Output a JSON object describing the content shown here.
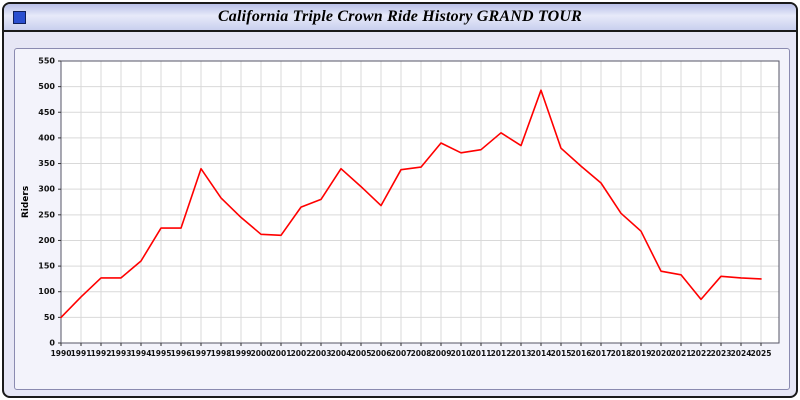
{
  "header": {
    "title": "California Triple Crown Ride History GRAND TOUR"
  },
  "colors": {
    "line": "#ff0000",
    "window_background": "#e6e6f5",
    "panel_background": "#f3f3fb",
    "plot_background": "#ffffff",
    "gridline": "#d9d9d9",
    "plot_border": "#555566"
  },
  "chart_data": {
    "type": "line",
    "title": "California Triple Crown Ride History GRAND TOUR",
    "xlabel": "",
    "ylabel": "Riders",
    "ylim": [
      0,
      550
    ],
    "y_tick_step": 50,
    "grid": true,
    "legend": "none",
    "line_color": "#ff0000",
    "categories": [
      "1990",
      "1991",
      "1992",
      "1993",
      "1994",
      "1995",
      "1996",
      "1997",
      "1998",
      "1999",
      "2000",
      "2001",
      "2002",
      "2003",
      "2004",
      "2005",
      "2006",
      "2007",
      "2008",
      "2009",
      "2010",
      "2011",
      "2012",
      "2013",
      "2014",
      "2015",
      "2016",
      "2017",
      "2018",
      "2019",
      "2020",
      "2021",
      "2022",
      "2023",
      "2024",
      "2025"
    ],
    "values": [
      50,
      90,
      127,
      127,
      160,
      224,
      224,
      340,
      283,
      245,
      212,
      210,
      265,
      280,
      340,
      305,
      268,
      338,
      343,
      390,
      371,
      377,
      410,
      385,
      493,
      380,
      345,
      312,
      253,
      218,
      140,
      133,
      85,
      130,
      127,
      125
    ]
  }
}
